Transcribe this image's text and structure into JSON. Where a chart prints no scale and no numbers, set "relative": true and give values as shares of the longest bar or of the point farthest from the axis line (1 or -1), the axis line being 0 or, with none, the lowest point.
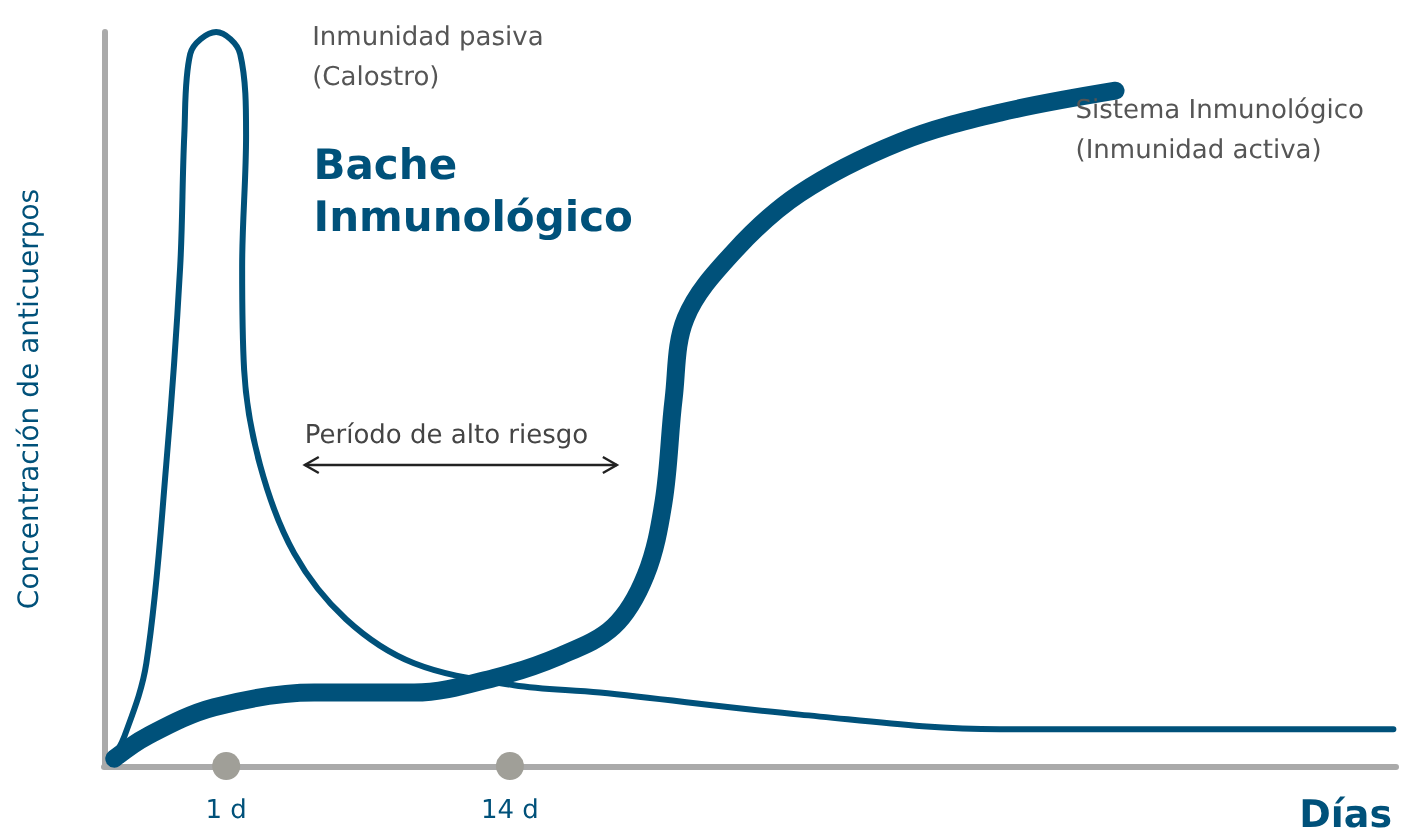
{
  "chart_data": {
    "type": "line",
    "relative": true,
    "xlabel": "Días",
    "ylabel": "Concentración de anticuerpos",
    "xlim": [
      -4.6,
      54.6
    ],
    "xticks": [
      {
        "value": 1,
        "label": "1 d"
      },
      {
        "value": 14,
        "label": "14 d"
      }
    ],
    "annotations": [
      "Bache\nInmunológico",
      "Período de alto riesgo"
    ],
    "marker": "none",
    "grid": false,
    "legend": false,
    "series": [
      {
        "name": "Inmunidad pasiva\n(Calostro)",
        "color": "#00517a",
        "x": [
          -4.31,
          -3.67,
          -2.66,
          -1.75,
          -1.11,
          -0.92,
          -0.65,
          0.54,
          1.64,
          1.91,
          1.73,
          1.82,
          2.55,
          4.11,
          6.49,
          9.61,
          14.19,
          18.12,
          27.28,
          36.44,
          54.48
        ],
        "values": [
          0.005,
          0.04,
          0.14,
          0.41,
          0.68,
          0.86,
          0.97,
          1.0,
          0.97,
          0.86,
          0.68,
          0.54,
          0.41,
          0.29,
          0.2,
          0.14,
          0.11,
          0.1,
          0.07,
          0.05,
          0.05
        ]
      },
      {
        "name": "Sistema Inmunológico\n(Inmunidad activa)",
        "color": "#00517a",
        "x": [
          -4.13,
          -2.66,
          0.45,
          5.03,
          9.61,
          13.27,
          16.29,
          18.75,
          20.22,
          21.04,
          21.5,
          22.05,
          24.24,
          27.28,
          31.86,
          36.44,
          41.75
        ],
        "values": [
          0.01,
          0.04,
          0.08,
          0.1,
          0.1,
          0.12,
          0.15,
          0.19,
          0.26,
          0.36,
          0.5,
          0.61,
          0.7,
          0.78,
          0.85,
          0.89,
          0.92
        ]
      }
    ]
  }
}
